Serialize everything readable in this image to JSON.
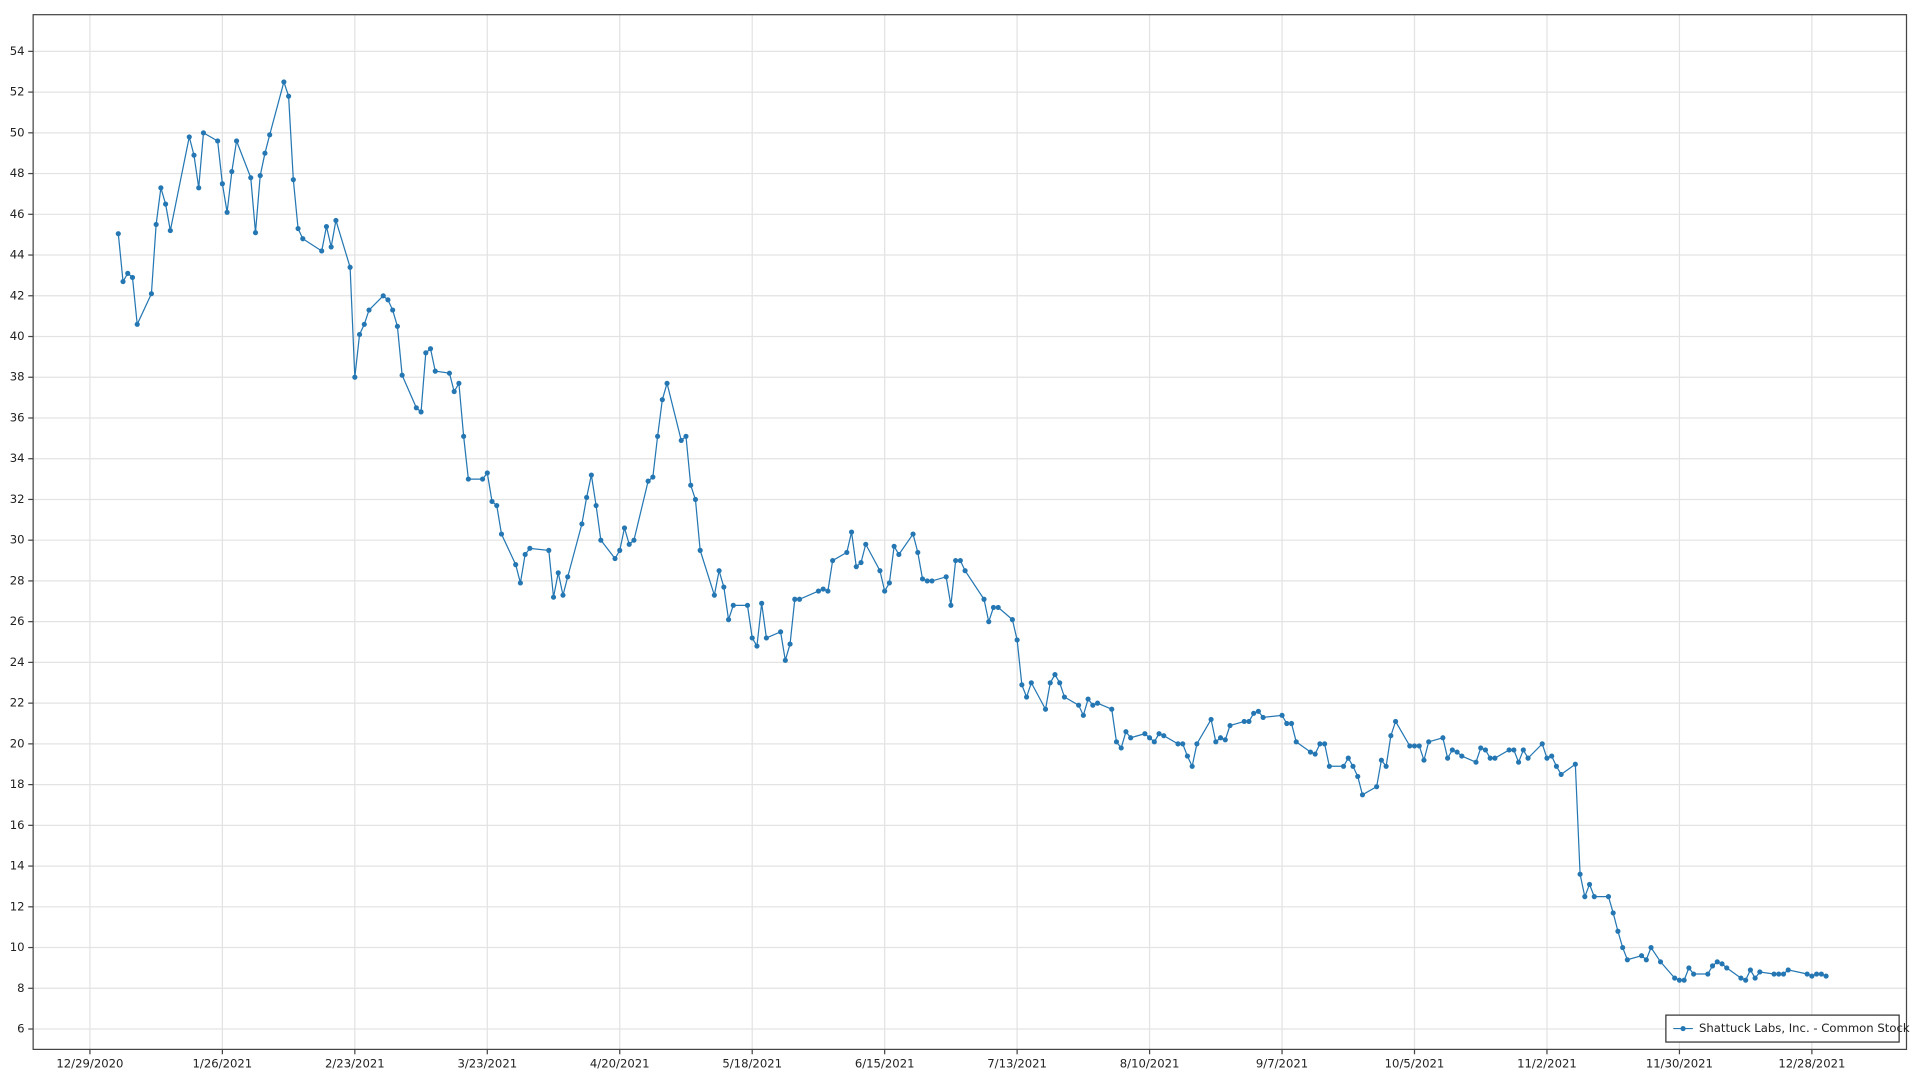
{
  "chart_data": {
    "type": "line",
    "x": [
      "1/4/2021",
      "1/5/2021",
      "1/6/2021",
      "1/7/2021",
      "1/8/2021",
      "1/11/2021",
      "1/12/2021",
      "1/13/2021",
      "1/14/2021",
      "1/15/2021",
      "1/19/2021",
      "1/20/2021",
      "1/21/2021",
      "1/22/2021",
      "1/25/2021",
      "1/26/2021",
      "1/27/2021",
      "1/28/2021",
      "1/29/2021",
      "2/1/2021",
      "2/2/2021",
      "2/3/2021",
      "2/4/2021",
      "2/5/2021",
      "2/8/2021",
      "2/9/2021",
      "2/10/2021",
      "2/11/2021",
      "2/12/2021",
      "2/16/2021",
      "2/17/2021",
      "2/18/2021",
      "2/19/2021",
      "2/22/2021",
      "2/23/2021",
      "2/24/2021",
      "2/25/2021",
      "2/26/2021",
      "3/1/2021",
      "3/2/2021",
      "3/3/2021",
      "3/4/2021",
      "3/5/2021",
      "3/8/2021",
      "3/9/2021",
      "3/10/2021",
      "3/11/2021",
      "3/12/2021",
      "3/15/2021",
      "3/16/2021",
      "3/17/2021",
      "3/18/2021",
      "3/19/2021",
      "3/22/2021",
      "3/23/2021",
      "3/24/2021",
      "3/25/2021",
      "3/26/2021",
      "3/29/2021",
      "3/30/2021",
      "3/31/2021",
      "4/1/2021",
      "4/5/2021",
      "4/6/2021",
      "4/7/2021",
      "4/8/2021",
      "4/9/2021",
      "4/12/2021",
      "4/13/2021",
      "4/14/2021",
      "4/15/2021",
      "4/16/2021",
      "4/19/2021",
      "4/20/2021",
      "4/21/2021",
      "4/22/2021",
      "4/23/2021",
      "4/26/2021",
      "4/27/2021",
      "4/28/2021",
      "4/29/2021",
      "4/30/2021",
      "5/3/2021",
      "5/4/2021",
      "5/5/2021",
      "5/6/2021",
      "5/7/2021",
      "5/10/2021",
      "5/11/2021",
      "5/12/2021",
      "5/13/2021",
      "5/14/2021",
      "5/17/2021",
      "5/18/2021",
      "5/19/2021",
      "5/20/2021",
      "5/21/2021",
      "5/24/2021",
      "5/25/2021",
      "5/26/2021",
      "5/27/2021",
      "5/28/2021",
      "6/1/2021",
      "6/2/2021",
      "6/3/2021",
      "6/4/2021",
      "6/7/2021",
      "6/8/2021",
      "6/9/2021",
      "6/10/2021",
      "6/11/2021",
      "6/14/2021",
      "6/15/2021",
      "6/16/2021",
      "6/17/2021",
      "6/18/2021",
      "6/21/2021",
      "6/22/2021",
      "6/23/2021",
      "6/24/2021",
      "6/25/2021",
      "6/28/2021",
      "6/29/2021",
      "6/30/2021",
      "7/1/2021",
      "7/2/2021",
      "7/6/2021",
      "7/7/2021",
      "7/8/2021",
      "7/9/2021",
      "7/12/2021",
      "7/13/2021",
      "7/14/2021",
      "7/15/2021",
      "7/16/2021",
      "7/19/2021",
      "7/20/2021",
      "7/21/2021",
      "7/22/2021",
      "7/23/2021",
      "7/26/2021",
      "7/27/2021",
      "7/28/2021",
      "7/29/2021",
      "7/30/2021",
      "8/2/2021",
      "8/3/2021",
      "8/4/2021",
      "8/5/2021",
      "8/6/2021",
      "8/9/2021",
      "8/10/2021",
      "8/11/2021",
      "8/12/2021",
      "8/13/2021",
      "8/16/2021",
      "8/17/2021",
      "8/18/2021",
      "8/19/2021",
      "8/20/2021",
      "8/23/2021",
      "8/24/2021",
      "8/25/2021",
      "8/26/2021",
      "8/27/2021",
      "8/30/2021",
      "8/31/2021",
      "9/1/2021",
      "9/2/2021",
      "9/3/2021",
      "9/7/2021",
      "9/8/2021",
      "9/9/2021",
      "9/10/2021",
      "9/13/2021",
      "9/14/2021",
      "9/15/2021",
      "9/16/2021",
      "9/17/2021",
      "9/20/2021",
      "9/21/2021",
      "9/22/2021",
      "9/23/2021",
      "9/24/2021",
      "9/27/2021",
      "9/28/2021",
      "9/29/2021",
      "9/30/2021",
      "10/1/2021",
      "10/4/2021",
      "10/5/2021",
      "10/6/2021",
      "10/7/2021",
      "10/8/2021",
      "10/11/2021",
      "10/12/2021",
      "10/13/2021",
      "10/14/2021",
      "10/15/2021",
      "10/18/2021",
      "10/19/2021",
      "10/20/2021",
      "10/21/2021",
      "10/22/2021",
      "10/25/2021",
      "10/26/2021",
      "10/27/2021",
      "10/28/2021",
      "10/29/2021",
      "11/1/2021",
      "11/2/2021",
      "11/3/2021",
      "11/4/2021",
      "11/5/2021",
      "11/8/2021",
      "11/9/2021",
      "11/10/2021",
      "11/11/2021",
      "11/12/2021",
      "11/15/2021",
      "11/16/2021",
      "11/17/2021",
      "11/18/2021",
      "11/19/2021",
      "11/22/2021",
      "11/23/2021",
      "11/24/2021",
      "11/26/2021",
      "11/29/2021",
      "11/30/2021",
      "12/1/2021",
      "12/2/2021",
      "12/3/2021",
      "12/6/2021",
      "12/7/2021",
      "12/8/2021",
      "12/9/2021",
      "12/10/2021",
      "12/13/2021",
      "12/14/2021",
      "12/15/2021",
      "12/16/2021",
      "12/17/2021",
      "12/20/2021",
      "12/21/2021",
      "12/22/2021",
      "12/23/2021",
      "12/27/2021",
      "12/28/2021",
      "12/29/2021",
      "12/30/2021",
      "12/31/2021"
    ],
    "series": [
      {
        "name": "Shattuck Labs, Inc. - Common Stock",
        "color": "#2477b3",
        "values": [
          45.05,
          42.7,
          43.1,
          42.9,
          40.6,
          42.1,
          45.5,
          47.3,
          46.5,
          45.2,
          49.8,
          48.9,
          47.3,
          50.0,
          49.6,
          47.5,
          46.1,
          48.1,
          49.6,
          47.8,
          45.1,
          47.9,
          49.0,
          49.9,
          52.5,
          51.8,
          47.7,
          45.3,
          44.8,
          44.2,
          45.4,
          44.4,
          45.7,
          43.4,
          38.0,
          40.1,
          40.6,
          41.3,
          42.0,
          41.8,
          41.3,
          40.5,
          38.1,
          36.5,
          36.3,
          39.2,
          39.4,
          38.3,
          38.2,
          37.3,
          37.7,
          35.1,
          33.0,
          33.0,
          33.3,
          31.9,
          31.7,
          30.3,
          28.8,
          27.9,
          29.3,
          29.6,
          29.5,
          27.2,
          28.4,
          27.3,
          28.2,
          30.8,
          32.1,
          33.2,
          31.7,
          30.0,
          29.1,
          29.5,
          30.6,
          29.8,
          30.0,
          32.9,
          33.1,
          35.1,
          36.9,
          37.7,
          34.9,
          35.1,
          32.7,
          32.0,
          29.5,
          27.3,
          28.5,
          27.7,
          26.1,
          26.8,
          26.8,
          25.2,
          24.8,
          26.9,
          25.2,
          25.5,
          24.1,
          24.9,
          27.1,
          27.1,
          27.5,
          27.6,
          27.5,
          29.0,
          29.4,
          30.4,
          28.7,
          28.9,
          29.8,
          28.5,
          27.5,
          27.9,
          29.7,
          29.3,
          30.3,
          29.4,
          28.1,
          28.0,
          28.0,
          28.2,
          26.8,
          29.0,
          29.0,
          28.5,
          27.1,
          26.0,
          26.7,
          26.7,
          26.1,
          25.1,
          22.9,
          22.3,
          23.0,
          21.7,
          23.0,
          23.4,
          23.0,
          22.3,
          21.9,
          21.4,
          22.2,
          21.9,
          22.0,
          21.7,
          20.1,
          19.8,
          20.6,
          20.3,
          20.5,
          20.3,
          20.1,
          20.5,
          20.4,
          20.0,
          20.0,
          19.4,
          18.9,
          20.0,
          21.2,
          20.1,
          20.3,
          20.2,
          20.9,
          21.1,
          21.1,
          21.5,
          21.6,
          21.3,
          21.4,
          21.0,
          21.0,
          20.1,
          19.6,
          19.5,
          20.0,
          20.0,
          18.9,
          18.9,
          19.3,
          18.9,
          18.4,
          17.5,
          17.9,
          19.2,
          18.9,
          20.4,
          21.1,
          19.9,
          19.9,
          19.9,
          19.2,
          20.1,
          20.3,
          19.3,
          19.7,
          19.6,
          19.4,
          19.1,
          19.8,
          19.7,
          19.3,
          19.3,
          19.7,
          19.7,
          19.1,
          19.7,
          19.3,
          20.0,
          19.3,
          19.4,
          18.9,
          18.5,
          19.0,
          13.6,
          12.5,
          13.1,
          12.5,
          12.5,
          11.7,
          10.8,
          10.0,
          9.4,
          9.6,
          9.4,
          10.0,
          9.3,
          8.5,
          8.4,
          8.4,
          9.0,
          8.7,
          8.7,
          9.1,
          9.3,
          9.2,
          9.0,
          8.5,
          8.4,
          8.9,
          8.5,
          8.8,
          8.7,
          8.7,
          8.7,
          8.9,
          8.7,
          8.6,
          8.7,
          8.7,
          8.6
        ]
      }
    ],
    "xlim": [
      "12/17/2020",
      "1/17/2022"
    ],
    "xticks": [
      "12/29/2020",
      "1/26/2021",
      "2/23/2021",
      "3/23/2021",
      "4/20/2021",
      "5/18/2021",
      "6/15/2021",
      "7/13/2021",
      "8/10/2021",
      "9/7/2021",
      "10/5/2021",
      "11/2/2021",
      "11/30/2021",
      "12/28/2021"
    ],
    "ylim": [
      5,
      55.8
    ],
    "yticks": [
      6,
      8,
      10,
      12,
      14,
      16,
      18,
      20,
      22,
      24,
      26,
      28,
      30,
      32,
      34,
      36,
      38,
      40,
      42,
      44,
      46,
      48,
      50,
      52,
      54
    ],
    "grid": true,
    "legend": "lower right"
  }
}
